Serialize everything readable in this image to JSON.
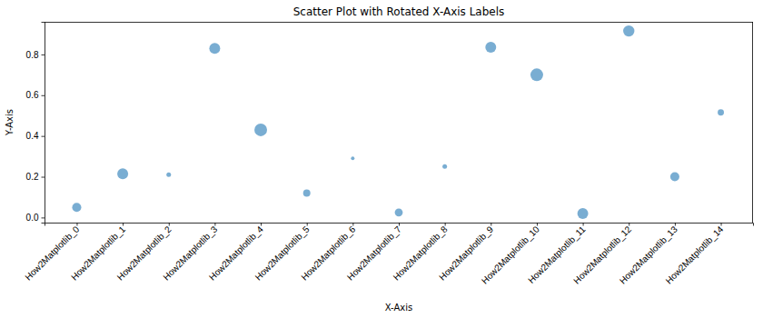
{
  "chart_data": {
    "type": "scatter",
    "title": "Scatter Plot with Rotated X-Axis Labels",
    "x_label": "X-Axis",
    "y_label": "Y-Axis",
    "categories": [
      "How2Matplotlib_0",
      "How2Matplotlib_1",
      "How2Matplotlib_2",
      "How2Matplotlib_3",
      "How2Matplotlib_4",
      "How2Matplotlib_5",
      "How2Matplotlib_6",
      "How2Matplotlib_7",
      "How2Matplotlib_8",
      "How2Matplotlib_9",
      "How2Matplotlib_10",
      "How2Matplotlib_11",
      "How2Matplotlib_12",
      "How2Matplotlib_13",
      "How2Matplotlib_14"
    ],
    "values": [
      0.05,
      0.215,
      0.21,
      0.83,
      0.43,
      0.12,
      0.29,
      0.025,
      0.25,
      0.835,
      0.7,
      0.02,
      0.915,
      0.2,
      0.515
    ],
    "sizes": [
      52,
      74,
      13,
      74,
      101,
      33,
      8,
      40,
      13,
      74,
      101,
      74,
      80,
      52,
      25
    ],
    "color": "#1f77b4",
    "xlim": [
      -0.7,
      14.7
    ],
    "ylim": [
      -0.025,
      0.96
    ],
    "yticks": [
      {
        "value": 0,
        "label": "0.0"
      },
      0.2,
      0.4,
      0.6,
      0.8
    ],
    "grid": false
  }
}
